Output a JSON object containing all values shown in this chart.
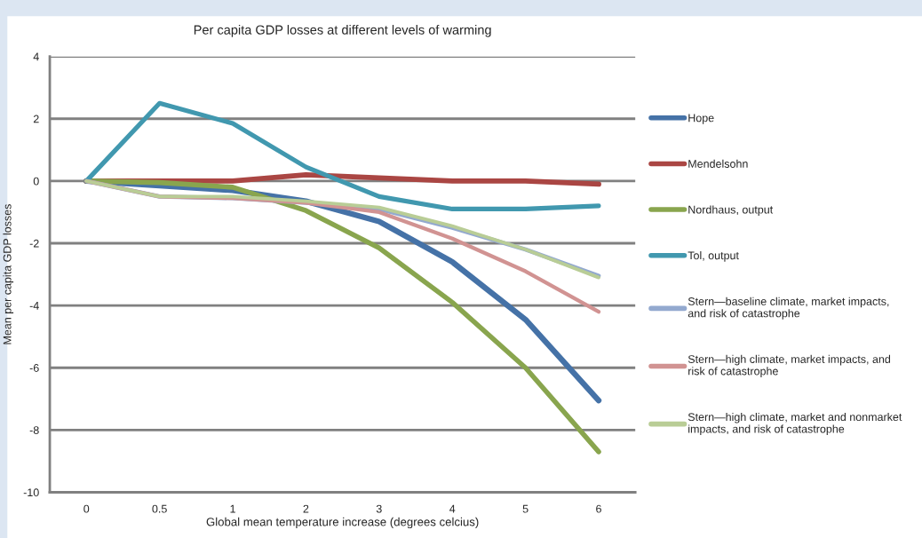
{
  "chart_data": {
    "type": "line",
    "title": "Per capita GDP losses at different levels of warming",
    "xlabel": "Global mean temperature increase (degrees celcius)",
    "ylabel": "Mean per capita GDP losses",
    "categories": [
      "0",
      "0.5",
      "1",
      "2",
      "3",
      "4",
      "5",
      "6"
    ],
    "series": [
      {
        "name": "Hope",
        "color": "#4572a7",
        "values": [
          0,
          -0.15,
          -0.3,
          -0.65,
          -1.3,
          -2.6,
          -4.45,
          -7.05
        ]
      },
      {
        "name": "Mendelsohn",
        "color": "#aa4643",
        "values": [
          0,
          0,
          0,
          0.2,
          0.1,
          0,
          0,
          -0.1
        ]
      },
      {
        "name": "Nordhaus, output",
        "color": "#89a54e",
        "values": [
          0,
          -0.05,
          -0.2,
          -0.95,
          -2.15,
          -3.9,
          -6.0,
          -8.7
        ]
      },
      {
        "name": "Tol, output",
        "color": "#4198af",
        "values": [
          0,
          2.5,
          1.85,
          0.45,
          -0.5,
          -0.9,
          -0.9,
          -0.8
        ]
      },
      {
        "name": "Stern—baseline climate, market impacts, and risk of catastrophe",
        "color": "#93a9cf",
        "values": [
          0,
          -0.5,
          -0.55,
          -0.7,
          -0.9,
          -1.5,
          -2.2,
          -3.05
        ]
      },
      {
        "name": "Stern—high climate, market impacts, and risk of catastrophe",
        "color": "#d19392",
        "values": [
          0,
          -0.5,
          -0.55,
          -0.7,
          -1.0,
          -1.85,
          -2.9,
          -4.2
        ]
      },
      {
        "name": "Stern—high climate, market and nonmarket impacts, and risk of catastrophe",
        "color": "#b9cd96",
        "values": [
          0,
          -0.5,
          -0.5,
          -0.65,
          -0.85,
          -1.45,
          -2.2,
          -3.1
        ]
      }
    ],
    "ylim": [
      -10,
      4
    ],
    "yticks": [
      -10,
      -8,
      -6,
      -4,
      -2,
      0,
      2,
      4
    ],
    "grid": "y",
    "legend": "right",
    "marker": "none",
    "line_style": "solid"
  }
}
